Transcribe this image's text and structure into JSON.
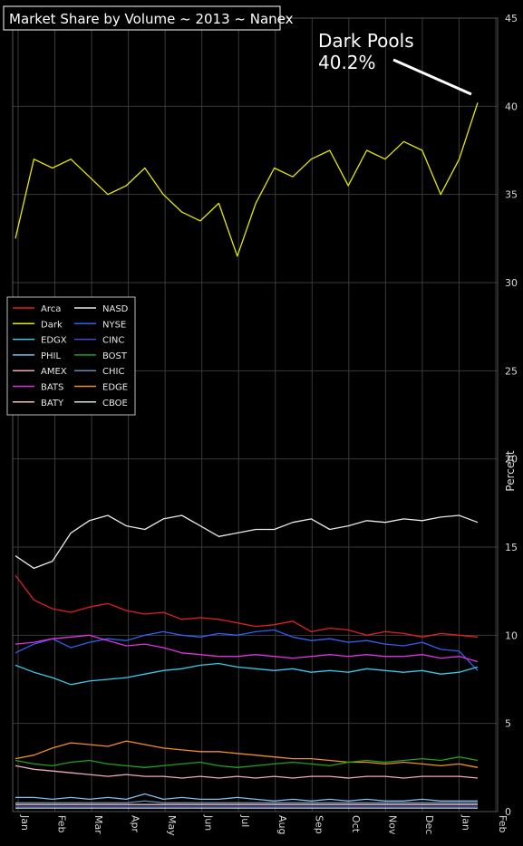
{
  "chart_data": {
    "type": "line",
    "title": "Market Share by Volume ~ 2013 ~ Nanex",
    "ylabel": "Percent",
    "xlabel": "",
    "ylim": [
      0,
      45
    ],
    "yticks": [
      0,
      5,
      10,
      15,
      20,
      25,
      30,
      35,
      40,
      45
    ],
    "x_tick_labels": [
      "Jan",
      "Feb",
      "Mar",
      "Apr",
      "May",
      "Jun",
      "Jul",
      "Aug",
      "Sep",
      "Oct",
      "Nov",
      "Dec",
      "Jan",
      "Feb"
    ],
    "grid": true,
    "legend_position": "middle-left",
    "annotation": {
      "line1": "Dark Pools",
      "line2": "40.2%"
    },
    "series": [
      {
        "name": "Arca",
        "color": "#e02020",
        "values": [
          13.4,
          12.0,
          11.5,
          11.3,
          11.6,
          11.8,
          11.4,
          11.2,
          11.3,
          10.9,
          11.0,
          10.9,
          10.7,
          10.5,
          10.6,
          10.8,
          10.2,
          10.4,
          10.3,
          10.0,
          10.2,
          10.1,
          9.9,
          10.1,
          10.0,
          9.9
        ]
      },
      {
        "name": "Dark",
        "color": "#e8e800",
        "values": [
          32.5,
          37.0,
          36.5,
          37.0,
          36.0,
          35.0,
          35.5,
          36.5,
          35.0,
          34.0,
          33.5,
          34.5,
          31.5,
          34.5,
          36.5,
          36.0,
          37.0,
          37.5,
          35.5,
          37.5,
          37.0,
          38.0,
          37.5,
          35.0,
          37.0,
          40.2
        ]
      },
      {
        "name": "EDGX",
        "color": "#38c8e8",
        "values": [
          8.3,
          7.9,
          7.6,
          7.2,
          7.4,
          7.5,
          7.6,
          7.8,
          8.0,
          8.1,
          8.3,
          8.4,
          8.2,
          8.1,
          8.0,
          8.1,
          7.9,
          8.0,
          7.9,
          8.1,
          8.0,
          7.9,
          8.0,
          7.8,
          7.9,
          8.2
        ]
      },
      {
        "name": "PHIL",
        "color": "#7ac0f0",
        "values": [
          0.8,
          0.8,
          0.7,
          0.8,
          0.7,
          0.8,
          0.7,
          1.0,
          0.7,
          0.8,
          0.7,
          0.7,
          0.8,
          0.7,
          0.6,
          0.7,
          0.6,
          0.7,
          0.6,
          0.7,
          0.6,
          0.6,
          0.7,
          0.6,
          0.6,
          0.6
        ]
      },
      {
        "name": "AMEX",
        "color": "#f0a8c0",
        "values": [
          2.6,
          2.4,
          2.3,
          2.2,
          2.1,
          2.0,
          2.1,
          2.0,
          2.0,
          1.9,
          2.0,
          1.9,
          2.0,
          1.9,
          2.0,
          1.9,
          2.0,
          2.0,
          1.9,
          2.0,
          2.0,
          1.9,
          2.0,
          2.0,
          2.0,
          1.9
        ]
      },
      {
        "name": "BATS",
        "color": "#e030e0",
        "values": [
          9.5,
          9.6,
          9.8,
          9.9,
          10.0,
          9.7,
          9.4,
          9.5,
          9.3,
          9.0,
          8.9,
          8.8,
          8.8,
          8.9,
          8.8,
          8.7,
          8.8,
          8.9,
          8.8,
          8.9,
          8.8,
          8.8,
          8.9,
          8.7,
          8.8,
          8.5
        ]
      },
      {
        "name": "BATY",
        "color": "#f0c8a8",
        "values": [
          0.4,
          0.4,
          0.4,
          0.4,
          0.4,
          0.4,
          0.4,
          0.4,
          0.4,
          0.4,
          0.4,
          0.4,
          0.4,
          0.4,
          0.4,
          0.4,
          0.4,
          0.4,
          0.4,
          0.4,
          0.4,
          0.4,
          0.4,
          0.4,
          0.4,
          0.4
        ]
      },
      {
        "name": "NASD",
        "color": "#e8e8e8",
        "values": [
          14.5,
          13.8,
          14.2,
          15.8,
          16.5,
          16.8,
          16.2,
          16.0,
          16.6,
          16.8,
          16.2,
          15.6,
          15.8,
          16.0,
          16.0,
          16.4,
          16.6,
          16.0,
          16.2,
          16.5,
          16.4,
          16.6,
          16.5,
          16.7,
          16.8,
          16.4
        ]
      },
      {
        "name": "NYSE",
        "color": "#3060f0",
        "values": [
          9.0,
          9.5,
          9.8,
          9.3,
          9.6,
          9.8,
          9.7,
          10.0,
          10.2,
          10.0,
          9.9,
          10.1,
          10.0,
          10.2,
          10.3,
          9.9,
          9.7,
          9.8,
          9.6,
          9.7,
          9.5,
          9.4,
          9.6,
          9.2,
          9.1,
          8.0
        ]
      },
      {
        "name": "CINC",
        "color": "#4848c8",
        "values": [
          0.3,
          0.3,
          0.3,
          0.3,
          0.3,
          0.3,
          0.3,
          0.3,
          0.3,
          0.3,
          0.3,
          0.3,
          0.3,
          0.3,
          0.3,
          0.3,
          0.3,
          0.3,
          0.3,
          0.3,
          0.3,
          0.3,
          0.3,
          0.3,
          0.3,
          0.3
        ]
      },
      {
        "name": "BOST",
        "color": "#20a020",
        "values": [
          2.9,
          2.7,
          2.6,
          2.8,
          2.9,
          2.7,
          2.6,
          2.5,
          2.6,
          2.7,
          2.8,
          2.6,
          2.5,
          2.6,
          2.7,
          2.8,
          2.7,
          2.6,
          2.8,
          2.9,
          2.8,
          2.9,
          3.0,
          2.9,
          3.1,
          2.9
        ]
      },
      {
        "name": "CHIC",
        "color": "#6888b8",
        "values": [
          0.5,
          0.5,
          0.5,
          0.5,
          0.5,
          0.5,
          0.5,
          0.6,
          0.5,
          0.5,
          0.5,
          0.5,
          0.5,
          0.5,
          0.5,
          0.5,
          0.5,
          0.5,
          0.5,
          0.5,
          0.5,
          0.5,
          0.5,
          0.5,
          0.5,
          0.5
        ]
      },
      {
        "name": "EDGE",
        "color": "#f09020",
        "values": [
          3.0,
          3.2,
          3.6,
          3.9,
          3.8,
          3.7,
          4.0,
          3.8,
          3.6,
          3.5,
          3.4,
          3.4,
          3.3,
          3.2,
          3.1,
          3.0,
          3.0,
          2.9,
          2.8,
          2.8,
          2.7,
          2.8,
          2.7,
          2.6,
          2.7,
          2.5
        ]
      },
      {
        "name": "CBOE",
        "color": "#c8e8e8",
        "values": [
          0.2,
          0.2,
          0.2,
          0.2,
          0.2,
          0.2,
          0.2,
          0.2,
          0.2,
          0.2,
          0.2,
          0.2,
          0.2,
          0.2,
          0.2,
          0.2,
          0.2,
          0.2,
          0.2,
          0.2,
          0.2,
          0.2,
          0.2,
          0.2,
          0.2,
          0.2
        ]
      }
    ]
  }
}
